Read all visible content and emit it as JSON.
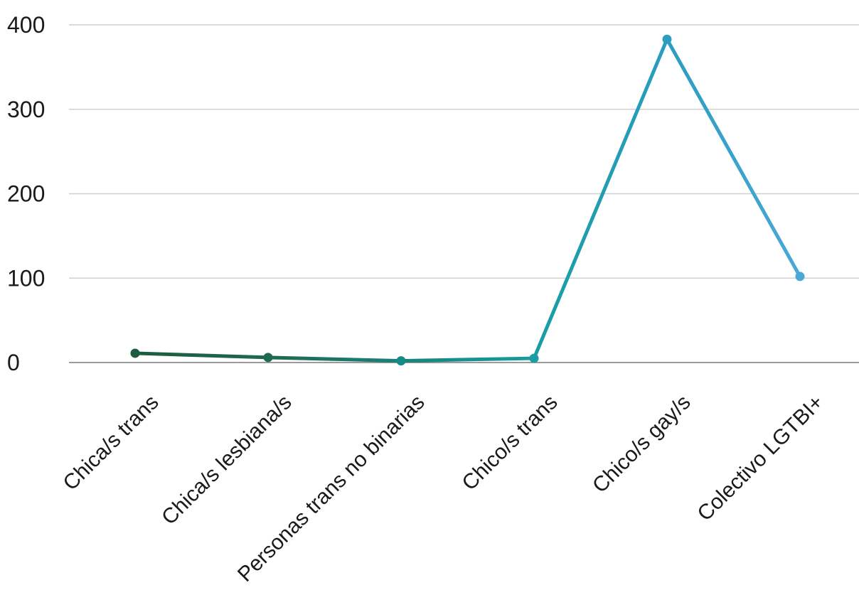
{
  "chart_data": {
    "type": "line",
    "categories": [
      "Chica/s trans",
      "Chica/s lesbiana/s",
      "Personas trans no binarias",
      "Chico/s trans",
      "Chico/s gay/s",
      "Colectivo LGTBI+"
    ],
    "series": [
      {
        "values": [
          11,
          6,
          2,
          5,
          383,
          102
        ]
      }
    ],
    "ylim": [
      0,
      400
    ],
    "yticks": [
      "0",
      "100",
      "200",
      "300",
      "400"
    ],
    "grid": true,
    "legend": "none",
    "colors": [
      "#1e5b3f",
      "#1f6a52",
      "#168a86",
      "#1a9ea4",
      "#2b9dc0",
      "#4aa8d6"
    ]
  }
}
